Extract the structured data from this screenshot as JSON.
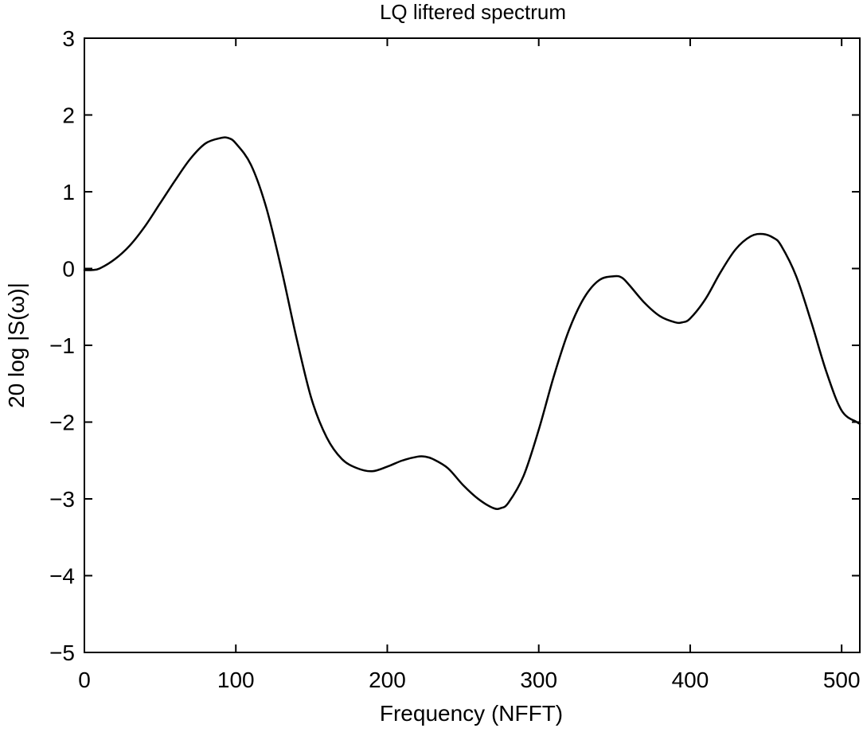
{
  "chart_data": {
    "type": "line",
    "title": "LQ liftered spectrum",
    "xlabel": "Frequency (NFFT)",
    "ylabel": "20 log |S(ω)|",
    "xlim": [
      0,
      512
    ],
    "ylim": [
      -5,
      3
    ],
    "xticks": [
      0,
      100,
      200,
      300,
      400,
      500
    ],
    "yticks": [
      3,
      2,
      1,
      0,
      -1,
      -2,
      -3,
      -4,
      -5
    ],
    "xtick_labels": [
      "0",
      "100",
      "200",
      "300",
      "400",
      "500"
    ],
    "ytick_labels": [
      "3",
      "2",
      "1",
      "0",
      "−1",
      "−2",
      "−3",
      "−4",
      "−5"
    ],
    "grid": false,
    "line_color": "#000000",
    "series": [
      {
        "x": [
          0,
          5,
          10,
          20,
          30,
          40,
          50,
          60,
          70,
          80,
          90,
          95,
          100,
          110,
          120,
          130,
          140,
          150,
          160,
          170,
          180,
          190,
          200,
          210,
          220,
          225,
          230,
          240,
          250,
          260,
          270,
          275,
          280,
          290,
          300,
          310,
          320,
          330,
          340,
          350,
          355,
          360,
          370,
          380,
          390,
          395,
          400,
          410,
          420,
          430,
          440,
          448,
          455,
          460,
          470,
          480,
          490,
          500,
          510,
          512
        ],
        "y": [
          -0.02,
          -0.02,
          0.0,
          0.12,
          0.3,
          0.55,
          0.85,
          1.15,
          1.43,
          1.63,
          1.7,
          1.7,
          1.63,
          1.35,
          0.8,
          0.0,
          -0.9,
          -1.7,
          -2.2,
          -2.48,
          -2.6,
          -2.64,
          -2.58,
          -2.5,
          -2.45,
          -2.45,
          -2.48,
          -2.6,
          -2.82,
          -3.0,
          -3.12,
          -3.12,
          -3.05,
          -2.7,
          -2.1,
          -1.4,
          -0.8,
          -0.38,
          -0.15,
          -0.1,
          -0.12,
          -0.22,
          -0.45,
          -0.62,
          -0.7,
          -0.7,
          -0.65,
          -0.4,
          -0.05,
          0.25,
          0.42,
          0.45,
          0.4,
          0.3,
          -0.1,
          -0.7,
          -1.35,
          -1.85,
          -2.0,
          -2.02
        ]
      }
    ]
  }
}
